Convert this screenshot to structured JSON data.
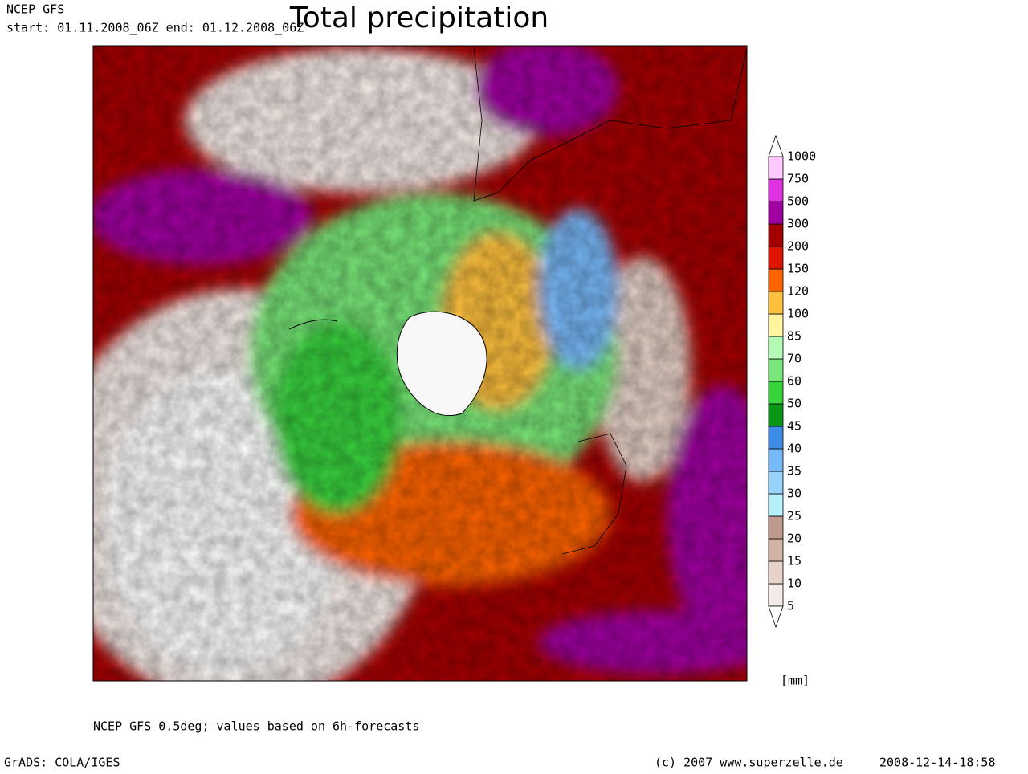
{
  "header": {
    "source": "NCEP GFS",
    "period": "start: 01.11.2008_06Z  end: 01.12.2008_06Z",
    "title": "Total precipitation"
  },
  "legend": {
    "levels": [
      5,
      10,
      15,
      20,
      25,
      30,
      35,
      40,
      45,
      50,
      60,
      70,
      85,
      100,
      120,
      150,
      200,
      300,
      500,
      750,
      1000
    ],
    "colors": [
      "#ffffff",
      "#f5ebe6",
      "#e6d2c8",
      "#d2b4a5",
      "#be9b8c",
      "#b4f0fa",
      "#96d2fa",
      "#78b9fa",
      "#3c8ce6",
      "#0a9619",
      "#37d23c",
      "#78e678",
      "#b4fab4",
      "#fff5a0",
      "#ffc03c",
      "#ff6400",
      "#e11400",
      "#a50000",
      "#a000a0",
      "#e132e1",
      "#ffc8ff",
      "#ffffff"
    ],
    "unit": "[mm]"
  },
  "footer": {
    "note": "NCEP GFS 0.5deg; values based on 6h-forecasts",
    "software": "GrADS: COLA/IGES",
    "copyright": "(c) 2007 www.superzelle.de",
    "timestamp": "2008-12-14-18:58"
  }
}
